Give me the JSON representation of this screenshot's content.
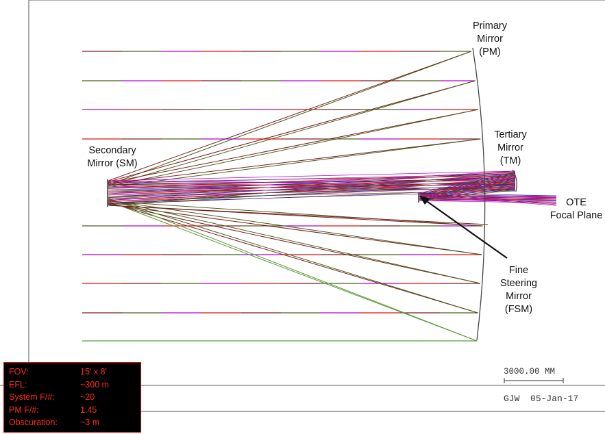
{
  "labels": {
    "primary_mirror": [
      "Primary",
      "Mirror",
      "(PM)"
    ],
    "tertiary_mirror": [
      "Tertiary",
      "Mirror",
      "(TM)"
    ],
    "secondary_mirror": [
      "Secondary",
      "Mirror (SM)"
    ],
    "ote_focal_plane": [
      "OTE",
      "Focal Plane"
    ],
    "fine_steering_mirror": [
      "Fine",
      "Steering",
      "Mirror",
      "(FSM)"
    ]
  },
  "scale_bar_label": "3000.00 MM",
  "stamp": {
    "initials": "GJW",
    "date": "05-Jan-17"
  },
  "specs": [
    {
      "key": "FOV:",
      "value": "15' x 8'"
    },
    {
      "key": "EFL:",
      "value": "~300 m"
    },
    {
      "key": "System F/#:",
      "value": "~20"
    },
    {
      "key": "PM F/#:",
      "value": "1.45"
    },
    {
      "key": "Obscuration:",
      "value": "~3 m"
    }
  ],
  "colors": {
    "ray_upper": "#7a1f1f",
    "ray_mid": "#4a5e1a",
    "ray_violet": "#b000d0",
    "ray_red": "#e01010",
    "ray_blue": "#2030c0",
    "ray_green": "#5a9a3a",
    "info_text": "#ff2a1a"
  }
}
